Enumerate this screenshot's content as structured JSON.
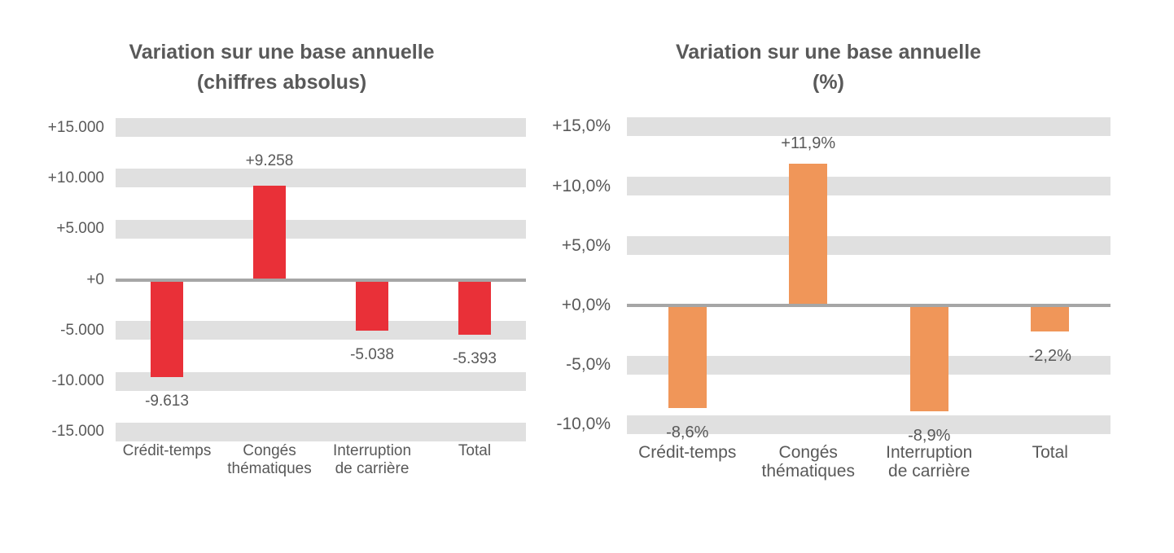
{
  "page": {
    "background": "#ffffff"
  },
  "colors": {
    "band_gray": "#e0e0e0",
    "zero_line_gray": "#a6a6a6",
    "text_gray": "#595959",
    "red_series": "#e93038",
    "orange_series": "#f09659"
  },
  "chart_data": [
    {
      "type": "bar",
      "title": "Variation sur une base annuelle (chiffres absolus)",
      "title_lines": [
        "Variation sur une base annuelle",
        "(chiffres absolus)"
      ],
      "categories": [
        [
          "Crédit-temps"
        ],
        [
          "Congés",
          "thématiques"
        ],
        [
          "Interruption",
          "de carrière"
        ],
        [
          "Total"
        ]
      ],
      "values": [
        -9613,
        9258,
        -5038,
        -5393
      ],
      "data_labels": [
        "-9.613",
        "+9.258",
        "-5.038",
        "-5.393"
      ],
      "y_ticks": [
        15000,
        10000,
        5000,
        0,
        -5000,
        -10000,
        -15000
      ],
      "y_tick_labels": [
        "+15.000",
        "+10.000",
        "+5.000",
        "+0",
        "-5.000",
        "-10.000",
        "-15.000"
      ],
      "ylim": [
        -15000,
        15000
      ],
      "xlabel": "",
      "ylabel": "",
      "bar_color": "#e93038",
      "grid": "horizontal-gray-bands",
      "legend": "none"
    },
    {
      "type": "bar",
      "title": "Variation sur une base annuelle (%)",
      "title_lines": [
        "Variation sur une base annuelle",
        "(%)"
      ],
      "categories": [
        [
          "Crédit-temps"
        ],
        [
          "Congés",
          "thématiques"
        ],
        [
          "Interruption",
          "de carrière"
        ],
        [
          "Total"
        ]
      ],
      "values": [
        -8.6,
        11.9,
        -8.9,
        -2.2
      ],
      "data_labels": [
        "-8,6%",
        "+11,9%",
        "-8,9%",
        "-2,2%"
      ],
      "y_ticks": [
        15,
        10,
        5,
        0,
        -5,
        -10
      ],
      "y_tick_labels": [
        "+15,0%",
        "+10,0%",
        "+5,0%",
        "+0,0%",
        "-5,0%",
        "-10,0%"
      ],
      "ylim": [
        -10,
        15
      ],
      "xlabel": "",
      "ylabel": "",
      "bar_color": "#f09659",
      "grid": "horizontal-gray-bands",
      "legend": "none"
    }
  ]
}
